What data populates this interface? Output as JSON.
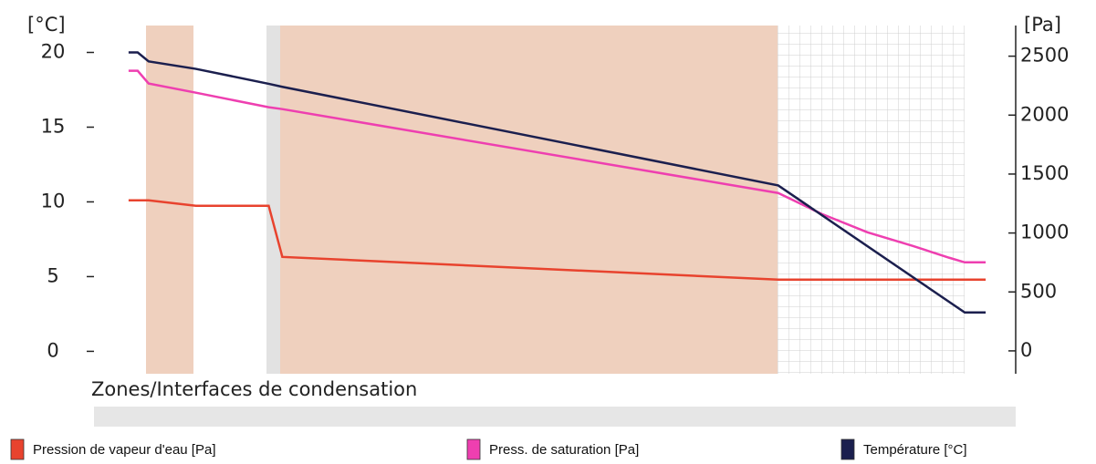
{
  "chart_data": {
    "type": "line",
    "y_label": "[°C]",
    "y2_label": "[Pa]",
    "annotation": "Zones/Interfaces de condensation",
    "xlim": [
      100,
      1113
    ],
    "ylim": [
      -1.5,
      21.8
    ],
    "yticks": [
      0,
      5,
      10,
      15,
      20
    ],
    "y2lim": [
      -194,
      2760
    ],
    "y2ticks": [
      0,
      500,
      1000,
      1500,
      2000,
      2500
    ],
    "series": [
      {
        "name": "Pression de vapeur d'eau [Pa]",
        "color": "#e8432e",
        "axis": "y2",
        "x": [
          138,
          160,
          212,
          292,
          307,
          852,
          1080
        ],
        "values": [
          1277,
          1277,
          1231,
          1231,
          797,
          604,
          604
        ]
      },
      {
        "name": "Press. de saturation [Pa]",
        "color": "#ee3fb0",
        "axis": "y2",
        "x": [
          138,
          148,
          160,
          212,
          292,
          307,
          852,
          900,
          950,
          1000,
          1040,
          1057,
          1080
        ],
        "values": [
          2376,
          2376,
          2268,
          2190,
          2067,
          2051,
          1339,
          1161,
          1006,
          890,
          790,
          751,
          751
        ]
      },
      {
        "name": "Température [°C]",
        "color": "#1b1f4e",
        "x": [
          138,
          148,
          160,
          212,
          292,
          307,
          852,
          1057,
          1080
        ],
        "values": [
          20.0,
          20.0,
          19.4,
          18.9,
          17.9,
          17.7,
          11.1,
          2.6,
          2.6
        ]
      }
    ]
  }
}
